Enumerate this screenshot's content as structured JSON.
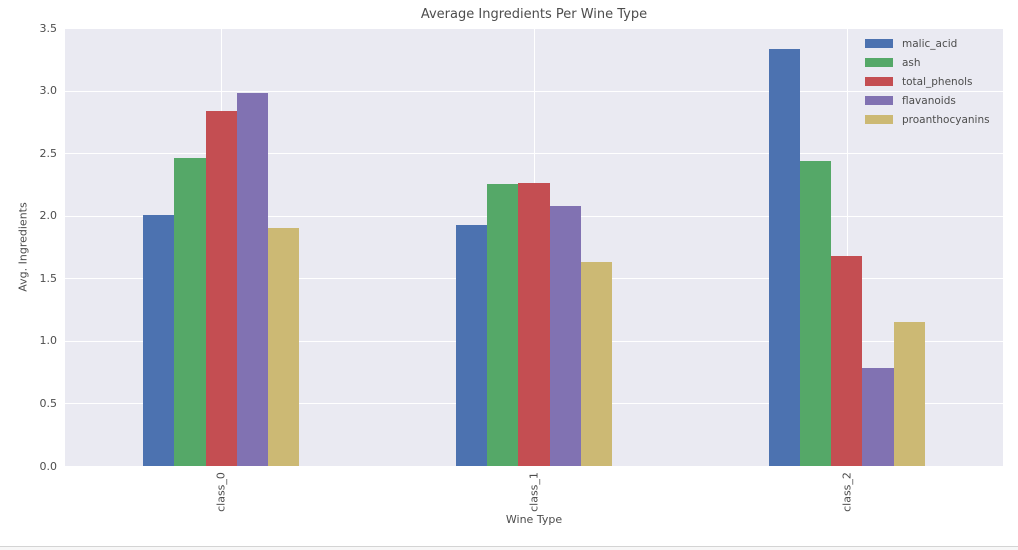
{
  "figure": {
    "background": "#ffffff",
    "plot_background": "#EAEAF2",
    "grid_color": "#ffffff",
    "text_color": "#4d4d4d"
  },
  "chart_data": {
    "type": "bar",
    "title": "Average Ingredients Per Wine Type",
    "xlabel": "Wine Type",
    "ylabel": "Avg. Ingredients",
    "categories": [
      "class_0",
      "class_1",
      "class_2"
    ],
    "series": [
      {
        "name": "malic_acid",
        "color": "#4C72B0",
        "values": [
          2.01,
          1.93,
          3.33
        ]
      },
      {
        "name": "ash",
        "color": "#55A868",
        "values": [
          2.46,
          2.25,
          2.44
        ]
      },
      {
        "name": "total_phenols",
        "color": "#C44E52",
        "values": [
          2.84,
          2.26,
          1.68
        ]
      },
      {
        "name": "flavanoids",
        "color": "#8172B2",
        "values": [
          2.98,
          2.08,
          0.78
        ]
      },
      {
        "name": "proanthocyanins",
        "color": "#CCB974",
        "values": [
          1.9,
          1.63,
          1.15
        ]
      }
    ],
    "ylim": [
      0,
      3.5
    ],
    "yticks": [
      "0.0",
      "0.5",
      "1.0",
      "1.5",
      "2.0",
      "2.5",
      "3.0",
      "3.5"
    ],
    "grid": true,
    "grid_orientation": "both",
    "legend_position": "upper right",
    "bar_group_fraction": 0.5,
    "xtick_rotation": 90
  }
}
